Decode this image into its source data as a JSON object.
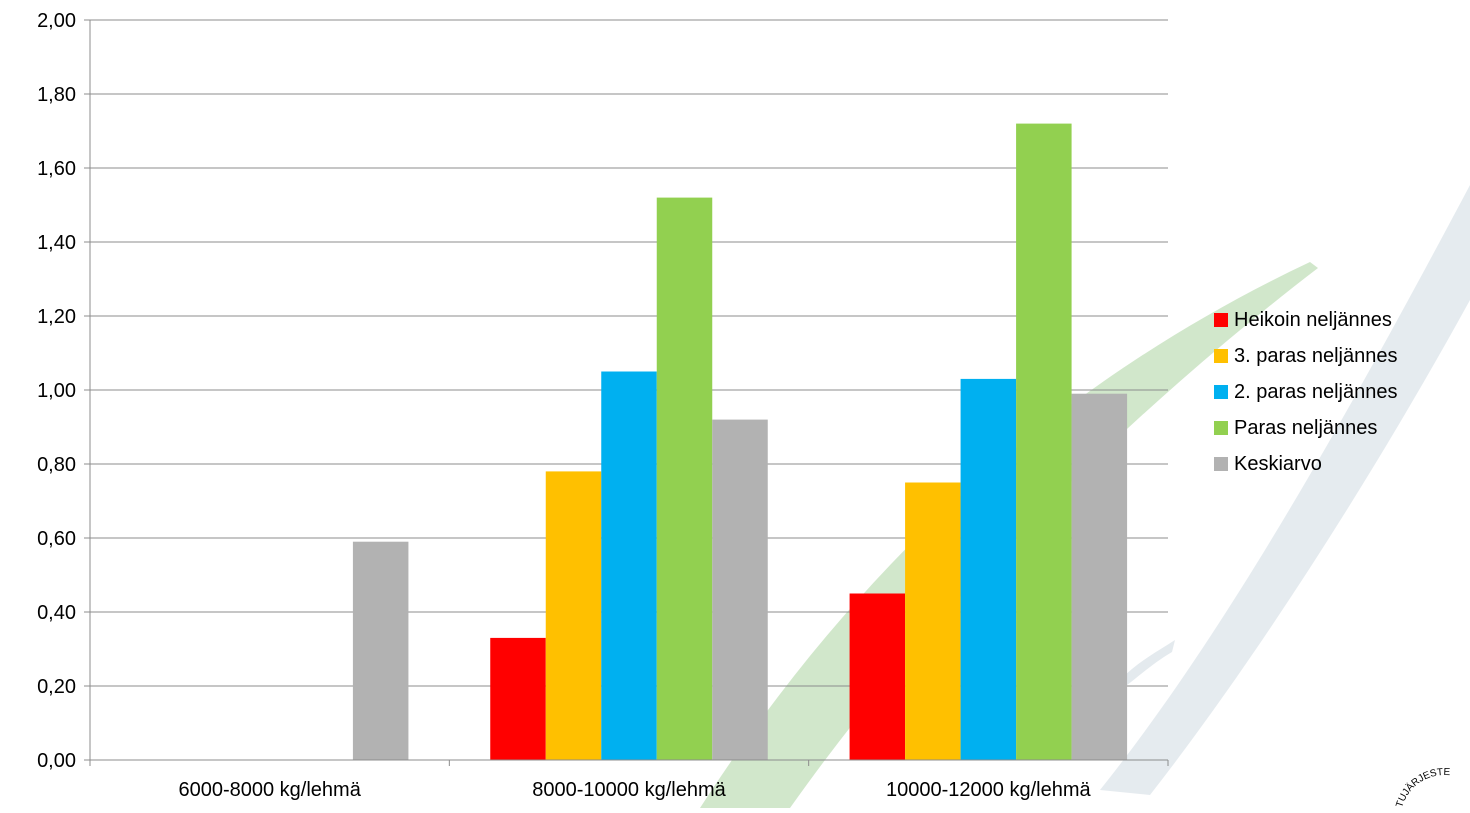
{
  "chart_data": {
    "type": "bar",
    "categories": [
      "6000-8000 kg/lehmä",
      "8000-10000 kg/lehmä",
      "10000-12000 kg/lehmä"
    ],
    "series": [
      {
        "name": "Heikoin neljännes",
        "color": "#ff0000",
        "values": [
          null,
          0.33,
          0.45
        ]
      },
      {
        "name": "3. paras neljännes",
        "color": "#ffc000",
        "values": [
          null,
          0.78,
          0.75
        ]
      },
      {
        "name": "2. paras neljännes",
        "color": "#00b0f0",
        "values": [
          null,
          1.05,
          1.03
        ]
      },
      {
        "name": "Paras neljännes",
        "color": "#92d050",
        "values": [
          null,
          1.52,
          1.72
        ]
      },
      {
        "name": "Keskiarvo",
        "color": "#b2b2b2",
        "values": [
          0.59,
          0.92,
          0.99
        ]
      }
    ],
    "ylim": [
      0,
      2.0
    ],
    "yticks": [
      "0,00",
      "0,20",
      "0,40",
      "0,60",
      "0,80",
      "1,00",
      "1,20",
      "1,40",
      "1,60",
      "1,80",
      "2,00"
    ],
    "grid": true,
    "legend_position": "right",
    "title": "",
    "xlabel": "",
    "ylabel": ""
  },
  "watermark": {
    "text": "TUJÄRJESTE"
  }
}
